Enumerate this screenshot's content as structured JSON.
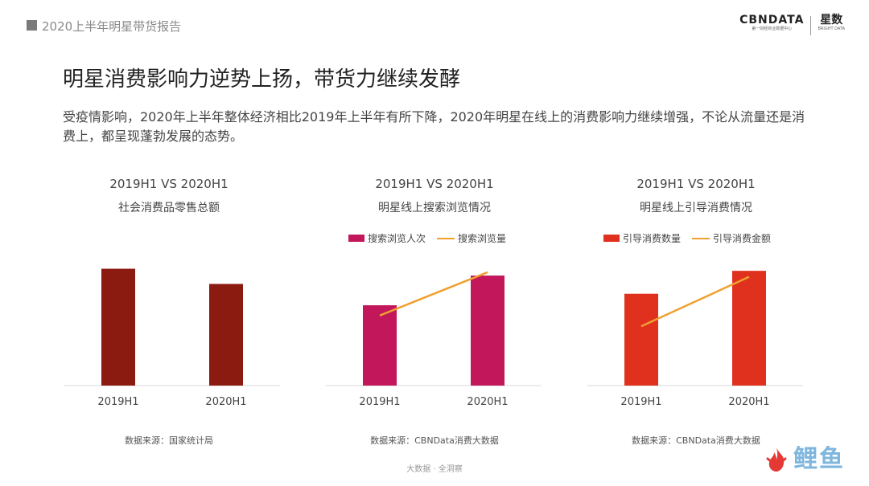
{
  "header": {
    "report_title": "2020上半年明星带货报告",
    "logo_main": "CBNDATA",
    "logo_sub": "第一财经商业数据中心",
    "logo_second": "星数",
    "logo_second_sub": "BRIGHT DATA"
  },
  "headline": "明星消费影响力逆势上扬，带货力继续发酵",
  "description": "受疫情影响，2020年上半年整体经济相比2019年上半年有所下降，2020年明星在线上的消费影响力继续增强，不论从流量还是消费上，都呈现蓬勃发展的态势。",
  "footer": "大数据 · 全洞察",
  "watermark": "鲤鱼",
  "chart_data": [
    {
      "type": "bar",
      "title": "2019H1 VS 2020H1",
      "subtitle": "社会消费品零售总额",
      "categories": [
        "2019H1",
        "2020H1"
      ],
      "series": [
        {
          "values": [
            100,
            87
          ],
          "color": "#8b1a10"
        }
      ],
      "ylim": [
        0,
        110
      ],
      "source": "数据来源：国家统计局"
    },
    {
      "type": "bar+line",
      "title": "2019H1 VS 2020H1",
      "subtitle": "明星线上搜索浏览情况",
      "categories": [
        "2019H1",
        "2020H1"
      ],
      "series": [
        {
          "name": "搜索浏览人次",
          "kind": "bar",
          "values": [
            100,
            137
          ],
          "color": "#c2185b"
        },
        {
          "name": "搜索浏览量",
          "kind": "line",
          "values": [
            100,
            137
          ],
          "color": "#f0a030"
        }
      ],
      "ylim": [
        0,
        160
      ],
      "line_ylim": [
        40,
        150
      ],
      "source": "数据来源：CBNData消费大数据"
    },
    {
      "type": "bar+line",
      "title": "2019H1 VS 2020H1",
      "subtitle": "明星线上引导消费情况",
      "categories": [
        "2019H1",
        "2020H1"
      ],
      "series": [
        {
          "name": "引导消费数量",
          "kind": "bar",
          "values": [
            100,
            125
          ],
          "color": "#e0301e"
        },
        {
          "name": "引导消费金额",
          "kind": "line",
          "values": [
            100,
            150
          ],
          "color": "#f0a030"
        }
      ],
      "ylim": [
        0,
        140
      ],
      "line_ylim": [
        40,
        170
      ],
      "source": "数据来源：CBNData消费大数据"
    }
  ]
}
